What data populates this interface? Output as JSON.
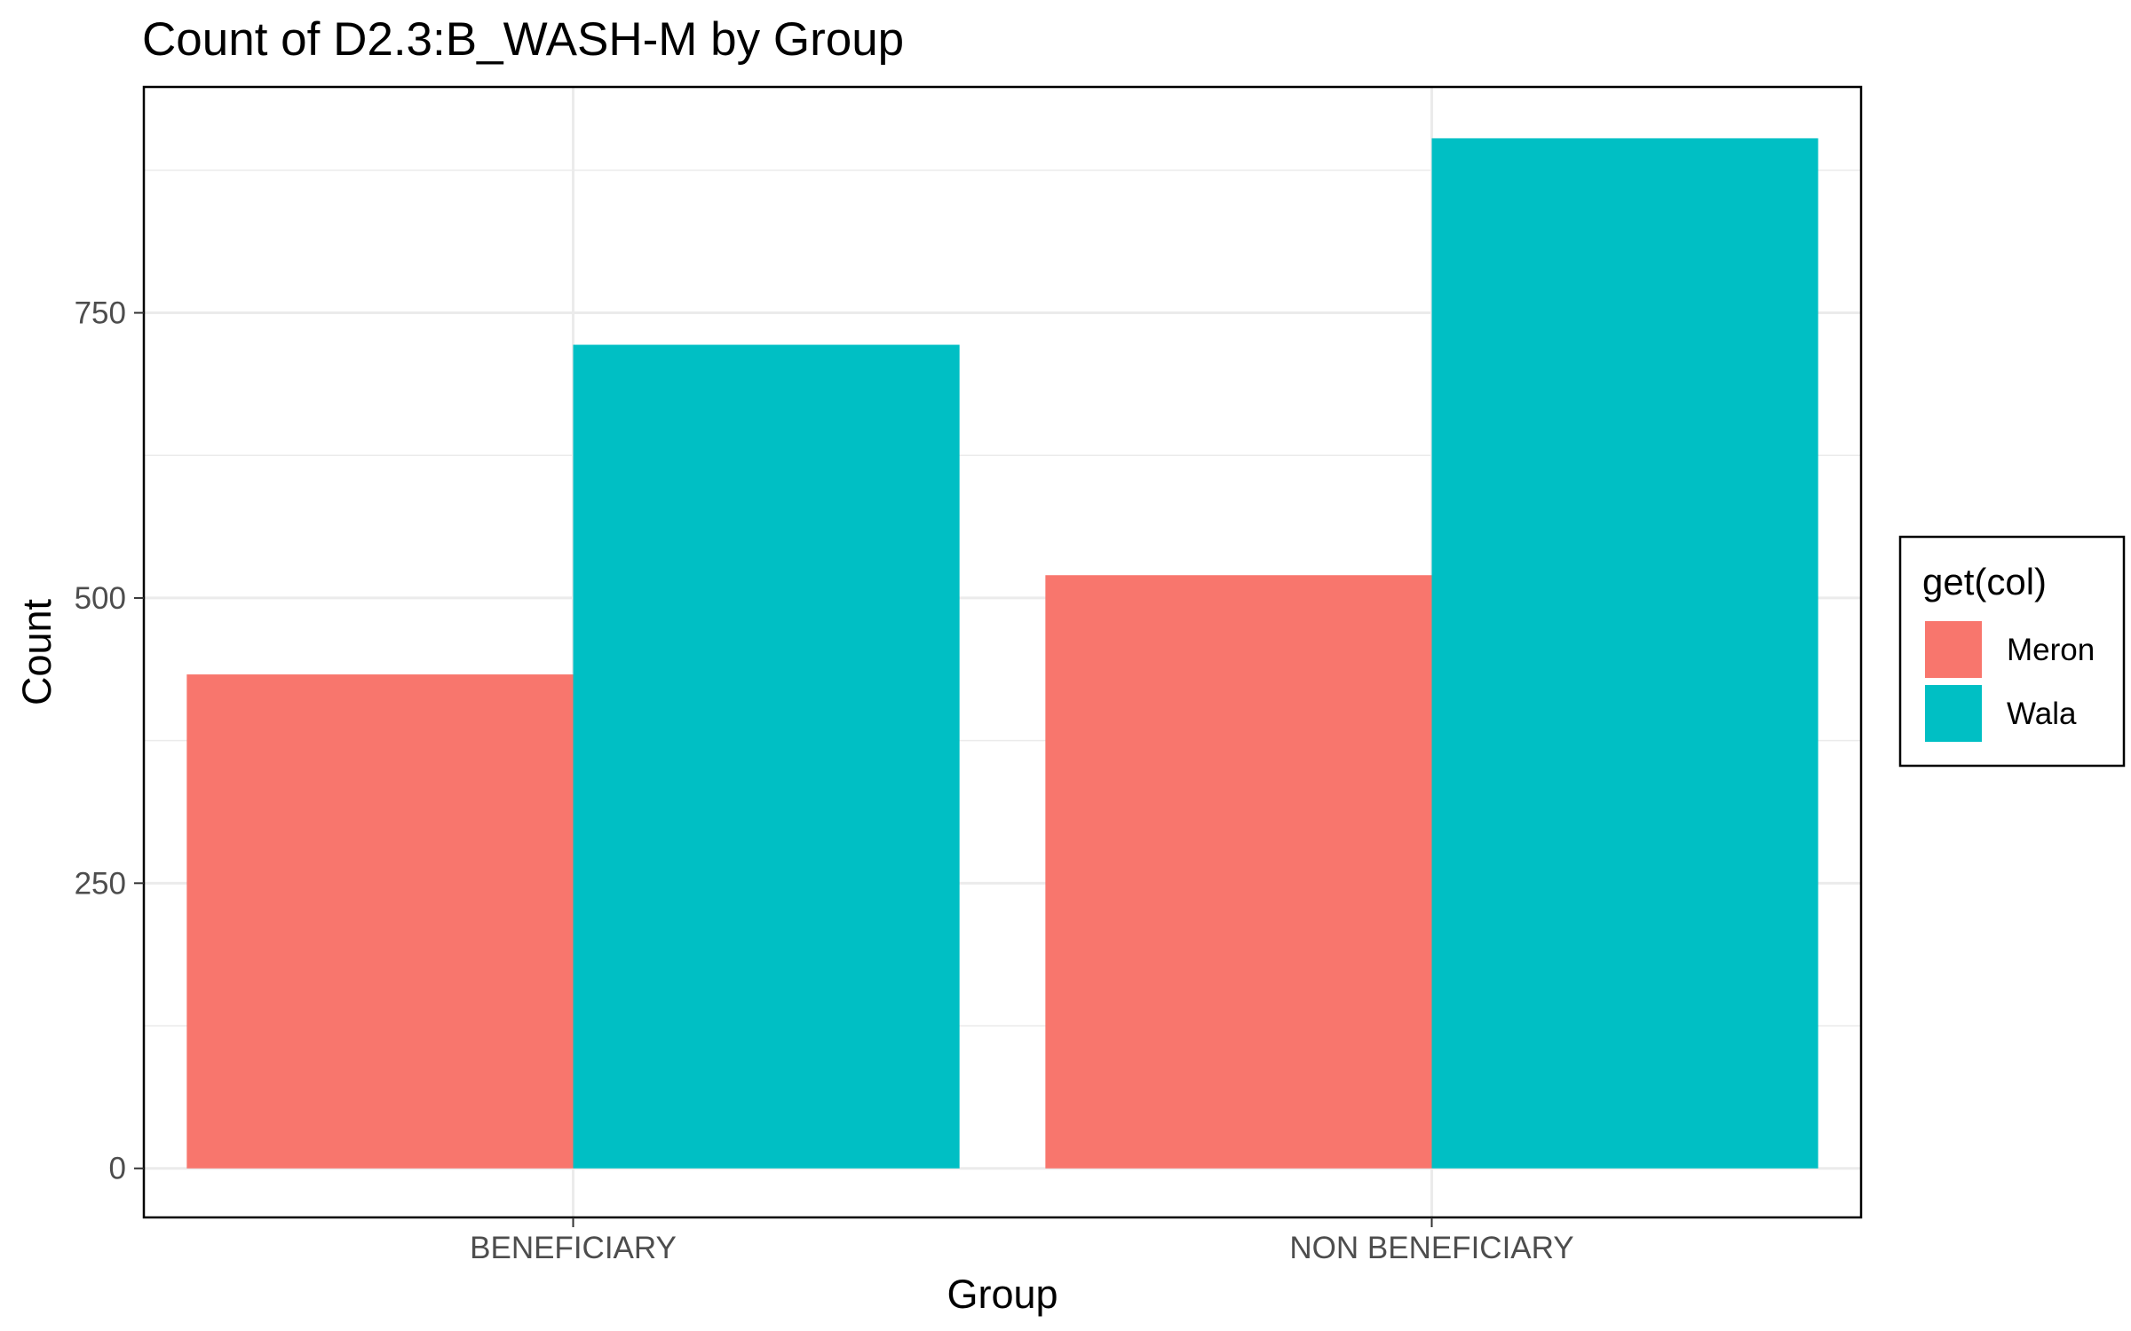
{
  "chart_data": {
    "type": "bar",
    "title": "Count of D2.3:B_WASH-M by Group",
    "xlabel": "Group",
    "ylabel": "Count",
    "categories": [
      "BENEFICIARY",
      "NON BENEFICIARY"
    ],
    "series": [
      {
        "name": "Meron",
        "color": "#F8766D",
        "values": [
          433,
          520
        ]
      },
      {
        "name": "Wala",
        "color": "#00BFC4",
        "values": [
          722,
          903
        ]
      }
    ],
    "ylim": [
      -43,
      948
    ],
    "yticks": [
      0,
      250,
      500,
      750
    ],
    "grid": true,
    "legend": {
      "title": "get(col)",
      "placement": "right"
    }
  }
}
